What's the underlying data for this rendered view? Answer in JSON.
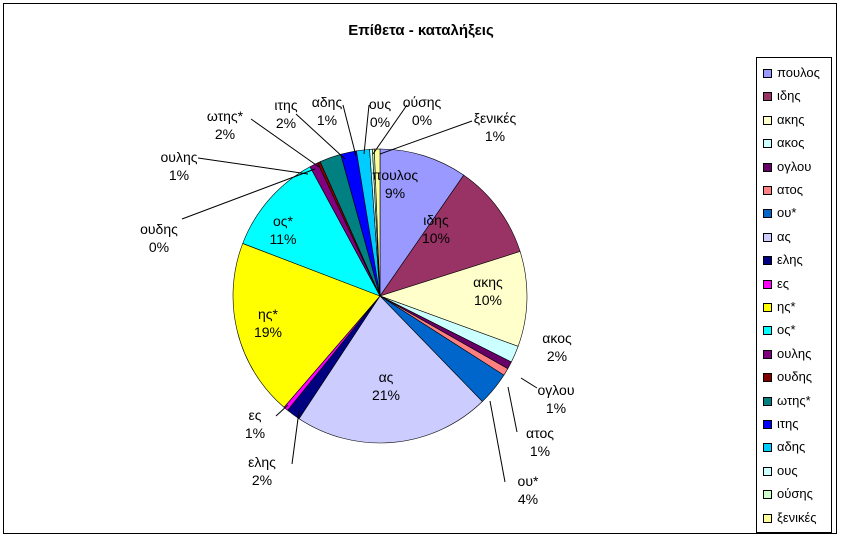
{
  "chart_data": {
    "type": "pie",
    "title": "Επίθετα - καταλήξεις",
    "legend_position": "right",
    "slices": [
      {
        "label": "πουλος",
        "percent_label": "9%",
        "value": 9.4,
        "color": "#9999ff"
      },
      {
        "label": "ιδης",
        "percent_label": "10%",
        "value": 10.2,
        "color": "#993366"
      },
      {
        "label": "ακης",
        "percent_label": "10%",
        "value": 10.2,
        "color": "#ffffcc"
      },
      {
        "label": "ακος",
        "percent_label": "2%",
        "value": 1.8,
        "color": "#ccffff"
      },
      {
        "label": "ογλου",
        "percent_label": "1%",
        "value": 0.8,
        "color": "#660066"
      },
      {
        "label": "ατος",
        "percent_label": "1%",
        "value": 0.8,
        "color": "#ff8080"
      },
      {
        "label": "ου*",
        "percent_label": "4%",
        "value": 3.6,
        "color": "#0066cc"
      },
      {
        "label": "ας",
        "percent_label": "21%",
        "value": 21.0,
        "color": "#ccccff"
      },
      {
        "label": "ελης",
        "percent_label": "2%",
        "value": 1.5,
        "color": "#000080"
      },
      {
        "label": "ες",
        "percent_label": "1%",
        "value": 0.5,
        "color": "#ff00ff"
      },
      {
        "label": "ης*",
        "percent_label": "19%",
        "value": 19.0,
        "color": "#ffff00"
      },
      {
        "label": "ος*",
        "percent_label": "11%",
        "value": 11.0,
        "color": "#00ffff"
      },
      {
        "label": "ουλης",
        "percent_label": "1%",
        "value": 0.9,
        "color": "#800080"
      },
      {
        "label": "ουδης",
        "percent_label": "0%",
        "value": 0.3,
        "color": "#800000"
      },
      {
        "label": "ωτης*",
        "percent_label": "2%",
        "value": 2.3,
        "color": "#008080"
      },
      {
        "label": "ιτης",
        "percent_label": "2%",
        "value": 1.7,
        "color": "#0000ff"
      },
      {
        "label": "αδης",
        "percent_label": "1%",
        "value": 1.4,
        "color": "#00ccff"
      },
      {
        "label": "ους",
        "percent_label": "0%",
        "value": 0.3,
        "color": "#ccffff"
      },
      {
        "label": "ούσης",
        "percent_label": "0%",
        "value": 0.2,
        "color": "#ccffcc"
      },
      {
        "label": "ξενικές",
        "percent_label": "1%",
        "value": 0.6,
        "color": "#ffff99"
      }
    ]
  }
}
